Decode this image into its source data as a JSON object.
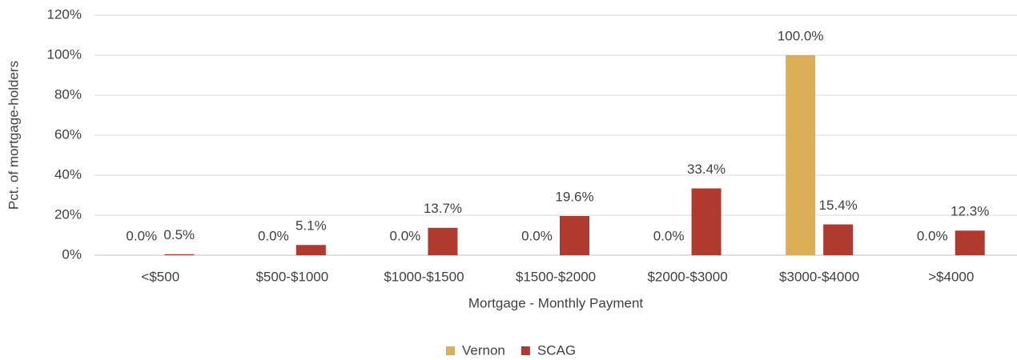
{
  "chart_data": {
    "type": "bar",
    "xlabel": "Mortgage - Monthly Payment",
    "ylabel": "Pct. of mortgage-holders",
    "categories": [
      "<$500",
      "$500-$1000",
      "$1000-$1500",
      "$1500-$2000",
      "$2000-$3000",
      "$3000-$4000",
      ">$4000"
    ],
    "series": [
      {
        "name": "Vernon",
        "color": "#dcae55",
        "values": [
          0,
          0,
          0,
          0,
          0,
          100,
          0
        ],
        "value_labels": [
          "0.0%",
          "0.0%",
          "0.0%",
          "0.0%",
          "0.0%",
          "100.0%",
          "0.0%"
        ]
      },
      {
        "name": "SCAG",
        "color": "#b03a2e",
        "values": [
          0.5,
          5.1,
          13.7,
          19.6,
          33.4,
          15.4,
          12.3
        ],
        "value_labels": [
          "0.5%",
          "5.1%",
          "13.7%",
          "19.6%",
          "33.4%",
          "15.4%",
          "12.3%"
        ]
      }
    ],
    "ylim": [
      0,
      120
    ],
    "yticks": [
      {
        "value": 0,
        "label": "0%"
      },
      {
        "value": 20,
        "label": "20%"
      },
      {
        "value": 40,
        "label": "40%"
      },
      {
        "value": 60,
        "label": "60%"
      },
      {
        "value": 80,
        "label": "80%"
      },
      {
        "value": 100,
        "label": "100%"
      },
      {
        "value": 120,
        "label": "120%"
      }
    ],
    "grid": true,
    "legend": "bottom"
  }
}
